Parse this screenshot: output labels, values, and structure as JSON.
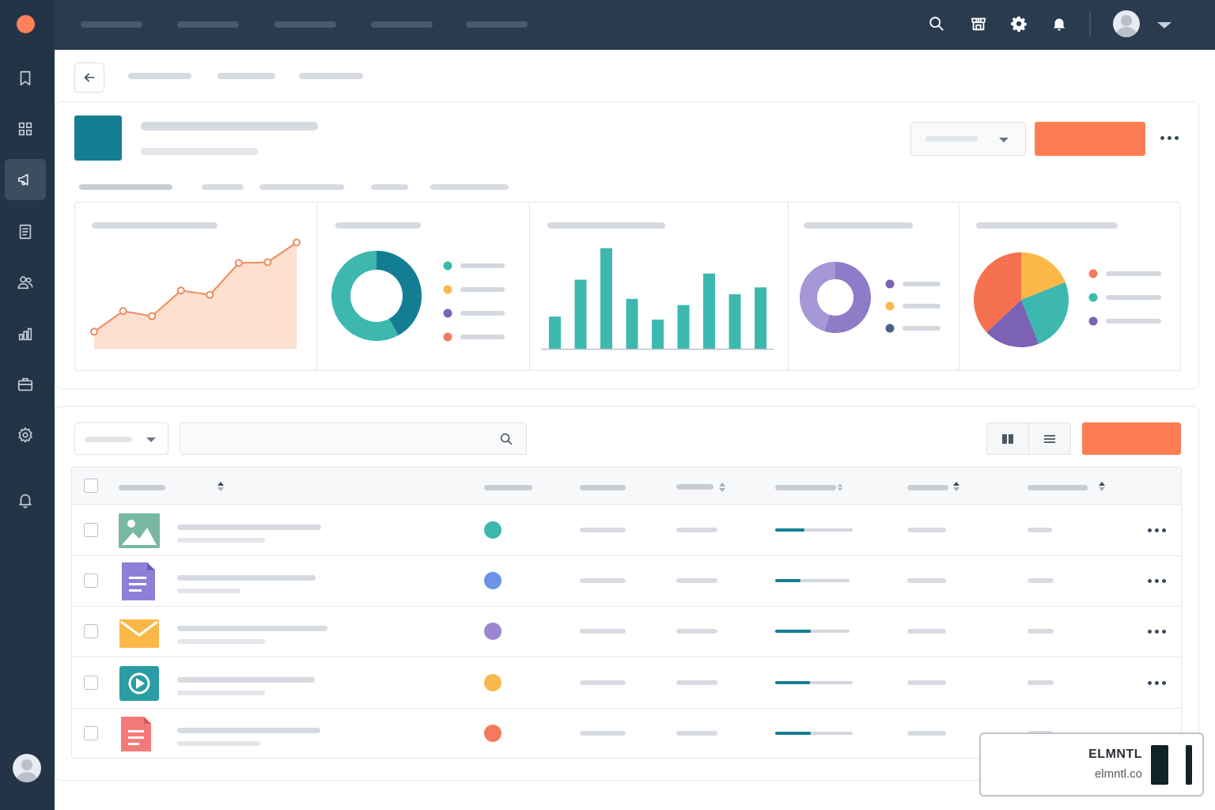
{
  "sidebar": {
    "items": [
      {
        "icon": "bookmark-icon",
        "active": false
      },
      {
        "icon": "grid-icon",
        "active": false
      },
      {
        "icon": "megaphone-icon",
        "active": true
      },
      {
        "icon": "document-icon",
        "active": false
      },
      {
        "icon": "users-icon",
        "active": false
      },
      {
        "icon": "bar-chart-icon",
        "active": false
      },
      {
        "icon": "briefcase-icon",
        "active": false
      },
      {
        "icon": "gear-icon",
        "active": false
      },
      {
        "icon": "bell-icon",
        "active": false
      }
    ]
  },
  "topbar": {
    "icons": [
      "search-icon",
      "store-icon",
      "gear-icon",
      "bell-icon",
      "avatar",
      "chevron-down-icon"
    ]
  },
  "colors": {
    "sidebar_bg": "#233447",
    "topbar_bg": "#2a3b4f",
    "accent_orange": "#ff7d52",
    "brand_teal": "#137e93"
  },
  "chart_data": [
    {
      "type": "area",
      "x": [
        1,
        2,
        3,
        4,
        5,
        6,
        7,
        8
      ],
      "series": [
        {
          "values": [
            20,
            44,
            38,
            68,
            63,
            100,
            101,
            124
          ]
        }
      ],
      "ylim": [
        0,
        130
      ]
    },
    {
      "type": "pie",
      "donut": true,
      "slices": [
        {
          "value": 42,
          "color": "#137e93"
        },
        {
          "value": 58,
          "color": "#3cb8ae"
        }
      ],
      "legend_colors": [
        "#3cb8ae",
        "#f8b84e",
        "#7b62b5",
        "#f37a5c"
      ]
    },
    {
      "type": "bar",
      "values": [
        42,
        90,
        131,
        65,
        38,
        57,
        98,
        71,
        80
      ],
      "color": "#3cb8ae",
      "ylim": [
        0,
        140
      ]
    },
    {
      "type": "pie",
      "donut": true,
      "slices": [
        {
          "value": 55,
          "color": "#8f7cc8"
        },
        {
          "value": 45,
          "color": "#a698d6"
        }
      ],
      "legend_colors": [
        "#7b62b5",
        "#f8b84e",
        "#4a6287"
      ]
    },
    {
      "type": "pie",
      "slices": [
        {
          "value": 19,
          "color": "#fbb848"
        },
        {
          "value": 25,
          "color": "#3cb8ae"
        },
        {
          "value": 19,
          "color": "#7b62b5"
        },
        {
          "value": 37,
          "color": "#f6714f"
        }
      ],
      "legend_colors": [
        "#f37a5c",
        "#3cb8ae",
        "#7b62b5"
      ]
    }
  ],
  "table": {
    "rows": [
      {
        "file_icon": "image-icon",
        "status_color": "#3cb8ae",
        "progress": 0.38
      },
      {
        "file_icon": "document-icon",
        "status_color": "#6b93e6",
        "progress": 0.34
      },
      {
        "file_icon": "mail-icon",
        "status_color": "#9b86d2",
        "progress": 0.48
      },
      {
        "file_icon": "video-icon",
        "status_color": "#f8b84e",
        "progress": 0.45
      },
      {
        "file_icon": "pdf-icon",
        "status_color": "#f37a5c",
        "progress": 0.46
      }
    ]
  },
  "watermark": {
    "name": "ELMNTL",
    "url": "elmntl.co"
  }
}
